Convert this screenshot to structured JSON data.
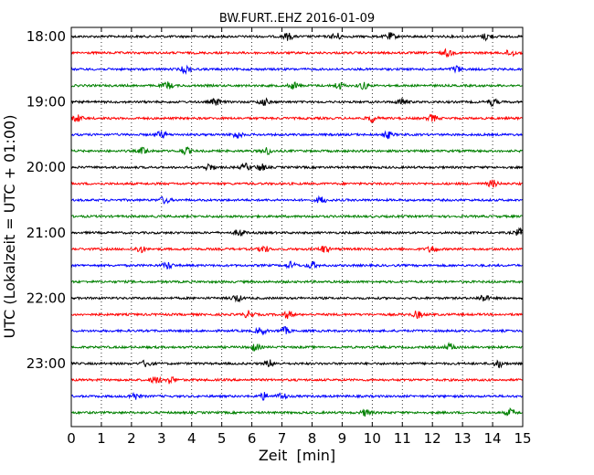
{
  "chart_data": {
    "type": "line",
    "title": "BW.FURT..EHZ 2016-01-09",
    "xlabel": "Zeit  [min]",
    "ylabel": "UTC (Lokalzeit = UTC + 01:00)",
    "xlim": [
      0,
      15
    ],
    "xticks": [
      "0",
      "1",
      "2",
      "3",
      "4",
      "5",
      "6",
      "7",
      "8",
      "9",
      "10",
      "11",
      "12",
      "13",
      "14",
      "15"
    ],
    "yticks": [
      "18:00",
      "19:00",
      "20:00",
      "21:00",
      "22:00",
      "23:00"
    ],
    "grid": "vertical dotted",
    "colors": [
      "#000000",
      "#ff0000",
      "#0000ff",
      "#008000"
    ],
    "traces": [
      {
        "start": "18:00",
        "color": "#000000",
        "events": [
          7.2,
          8.8,
          10.6,
          13.8
        ]
      },
      {
        "start": "18:15",
        "color": "#ff0000",
        "events": [
          12.5,
          14.6
        ]
      },
      {
        "start": "18:30",
        "color": "#0000ff",
        "events": [
          3.8,
          12.8
        ]
      },
      {
        "start": "18:45",
        "color": "#008000",
        "events": [
          3.2,
          7.4,
          8.9,
          9.7
        ]
      },
      {
        "start": "19:00",
        "color": "#000000",
        "events": [
          4.8,
          6.4,
          11.0,
          14.0
        ]
      },
      {
        "start": "19:15",
        "color": "#ff0000",
        "events": [
          0.2,
          10.0,
          12.0
        ]
      },
      {
        "start": "19:30",
        "color": "#0000ff",
        "events": [
          3.0,
          5.5,
          10.5
        ]
      },
      {
        "start": "19:45",
        "color": "#008000",
        "events": [
          2.4,
          3.8,
          6.5
        ]
      },
      {
        "start": "20:00",
        "color": "#000000",
        "events": [
          4.6,
          5.8,
          6.3
        ]
      },
      {
        "start": "20:15",
        "color": "#ff0000",
        "events": [
          14.0
        ]
      },
      {
        "start": "20:30",
        "color": "#0000ff",
        "events": [
          3.1,
          8.3
        ]
      },
      {
        "start": "20:45",
        "color": "#008000",
        "events": []
      },
      {
        "start": "21:00",
        "color": "#000000",
        "events": [
          5.6,
          14.9
        ]
      },
      {
        "start": "21:15",
        "color": "#ff0000",
        "events": [
          2.3,
          6.4,
          8.4,
          12.0
        ]
      },
      {
        "start": "21:30",
        "color": "#0000ff",
        "events": [
          3.2,
          7.3,
          8.0
        ]
      },
      {
        "start": "21:45",
        "color": "#008000",
        "events": []
      },
      {
        "start": "22:00",
        "color": "#000000",
        "events": [
          5.5,
          13.7
        ]
      },
      {
        "start": "22:15",
        "color": "#ff0000",
        "events": [
          5.9,
          7.2,
          11.5
        ]
      },
      {
        "start": "22:30",
        "color": "#0000ff",
        "events": [
          6.3,
          7.1
        ]
      },
      {
        "start": "22:45",
        "color": "#008000",
        "events": [
          6.1,
          12.6
        ]
      },
      {
        "start": "23:00",
        "color": "#000000",
        "events": [
          2.5,
          6.6,
          14.2
        ]
      },
      {
        "start": "23:15",
        "color": "#ff0000",
        "events": [
          2.8,
          3.3
        ]
      },
      {
        "start": "23:30",
        "color": "#0000ff",
        "events": [
          2.1,
          6.4,
          7.0
        ]
      },
      {
        "start": "23:45",
        "color": "#008000",
        "events": [
          9.8,
          14.6
        ]
      }
    ]
  }
}
